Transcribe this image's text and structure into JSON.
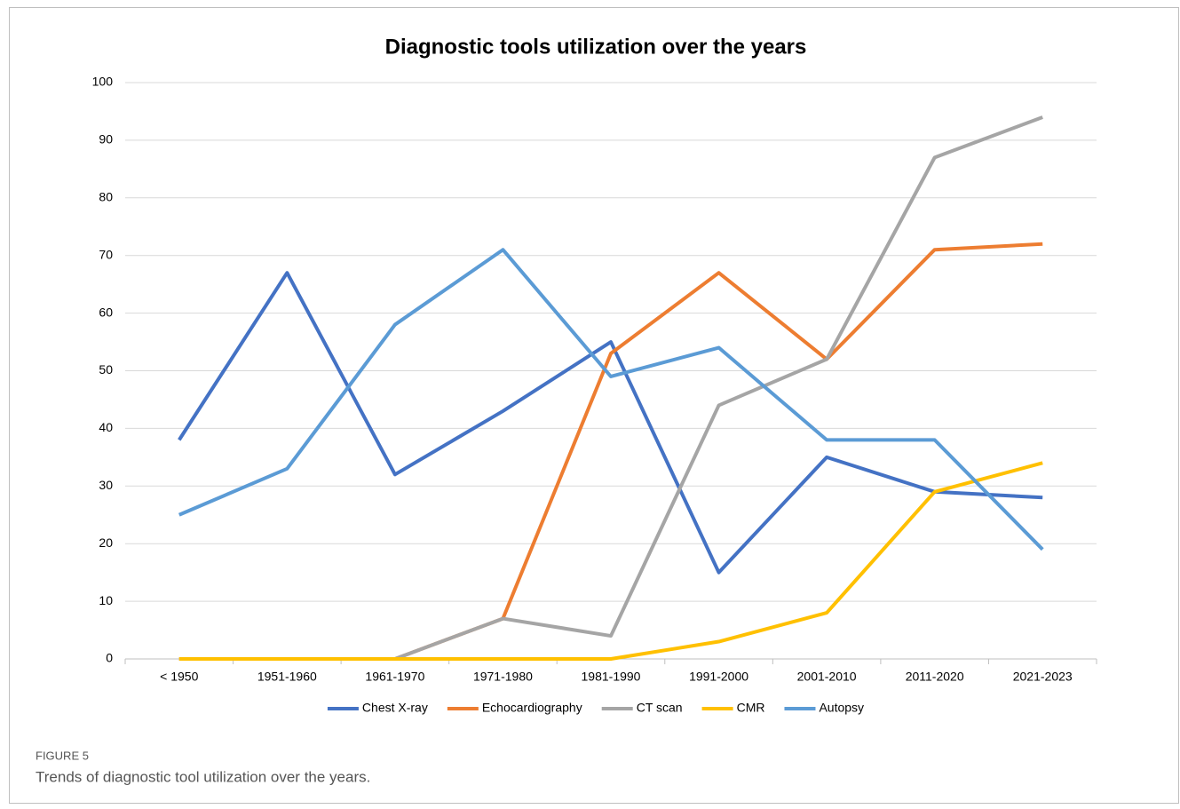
{
  "chart_data": {
    "type": "line",
    "title": "Diagnostic tools utilization over the years",
    "categories": [
      "< 1950",
      "1951-1960",
      "1961-1970",
      "1971-1980",
      "1981-1990",
      "1991-2000",
      "2001-2010",
      "2011-2020",
      "2021-2023"
    ],
    "series": [
      {
        "name": "Chest X-ray",
        "color": "#4472c4",
        "values": [
          38,
          67,
          32,
          43,
          55,
          15,
          35,
          29,
          28
        ]
      },
      {
        "name": "Echocardiography",
        "color": "#ed7d31",
        "values": [
          0,
          0,
          0,
          7,
          53,
          67,
          52,
          71,
          72
        ]
      },
      {
        "name": "CT scan",
        "color": "#a5a5a5",
        "values": [
          0,
          0,
          0,
          7,
          4,
          44,
          52,
          87,
          94
        ]
      },
      {
        "name": "CMR",
        "color": "#ffc000",
        "values": [
          0,
          0,
          0,
          0,
          0,
          3,
          8,
          29,
          34
        ]
      },
      {
        "name": "Autopsy",
        "color": "#5b9bd5",
        "values": [
          25,
          33,
          58,
          71,
          49,
          54,
          38,
          38,
          19
        ]
      }
    ],
    "ylim": [
      0,
      100
    ],
    "yticks": [
      0,
      10,
      20,
      30,
      40,
      50,
      60,
      70,
      80,
      90,
      100
    ],
    "grid": true,
    "legend": "bottom"
  },
  "figure_label": "FIGURE 5",
  "caption": "Trends of diagnostic tool utilization over the years."
}
